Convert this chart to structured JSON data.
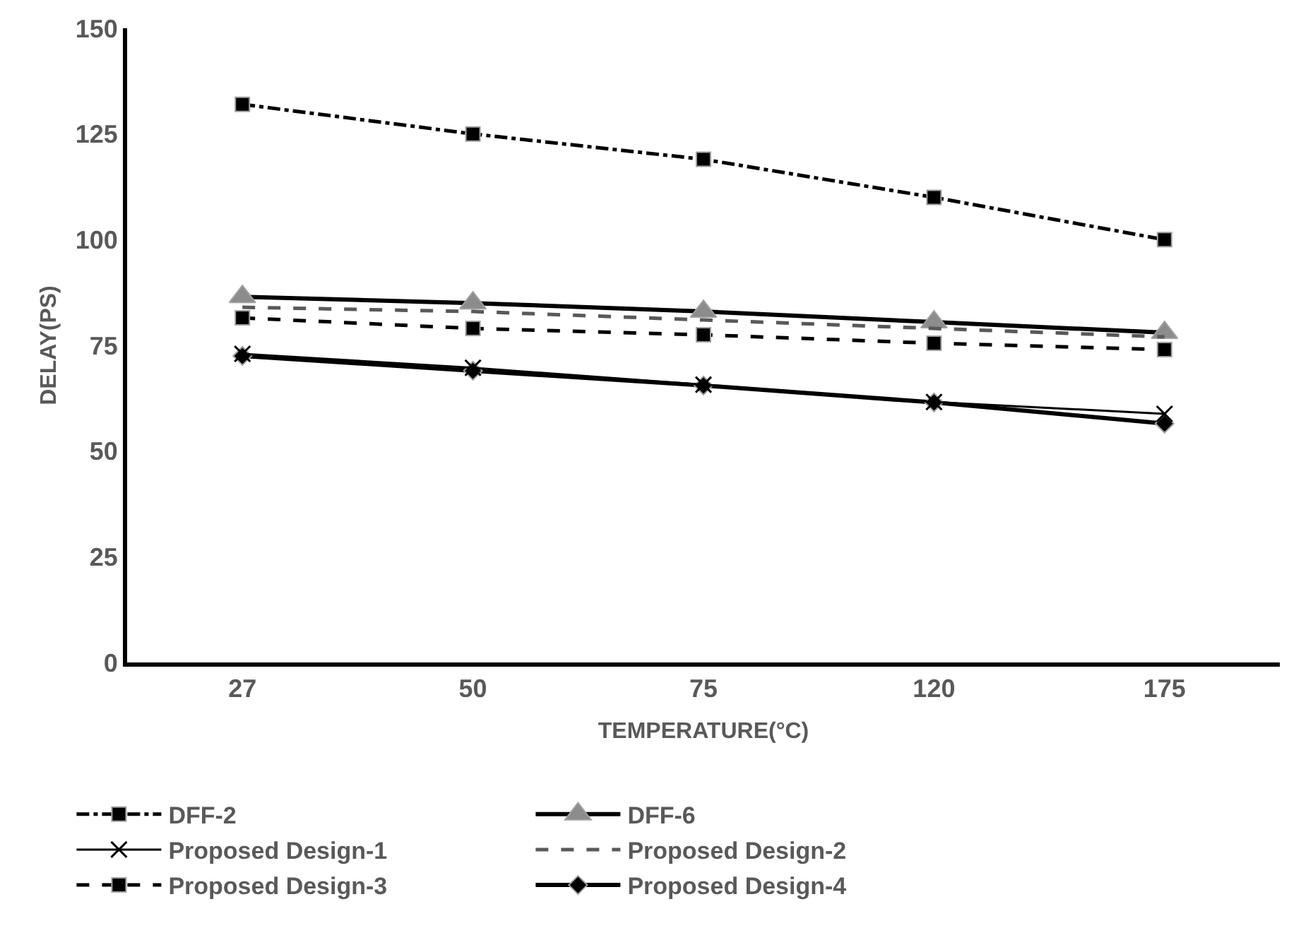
{
  "chart_data": {
    "type": "line",
    "xlabel": "TEMPERATURE(°C)",
    "ylabel": "DELAY(PS)",
    "categories": [
      "27",
      "50",
      "75",
      "120",
      "175"
    ],
    "ylim": [
      0,
      150
    ],
    "yticks": [
      0,
      25,
      50,
      75,
      100,
      125,
      150
    ],
    "grid": false,
    "legend": "bottom",
    "series": [
      {
        "name": "DFF-2",
        "color": "#000000",
        "marker": "square",
        "line_style": "dashdot",
        "values": [
          132,
          125,
          119,
          110,
          100
        ]
      },
      {
        "name": "DFF-6",
        "color": "#000000",
        "marker": "triangle",
        "line_style": "solid",
        "values": [
          86.5,
          85,
          83,
          80.5,
          78
        ]
      },
      {
        "name": "Proposed Design-1",
        "color": "#000000",
        "marker": "cross",
        "line_style": "solid",
        "values": [
          73,
          69.7,
          65.7,
          61.6,
          58.8
        ]
      },
      {
        "name": "Proposed Design-2",
        "color": "#595959",
        "marker": "none",
        "line_style": "dashed",
        "values": [
          84,
          83,
          81,
          79,
          77
        ]
      },
      {
        "name": "Proposed Design-3",
        "color": "#000000",
        "marker": "square",
        "line_style": "dashed",
        "values": [
          81.5,
          79,
          77.5,
          75.5,
          74
        ]
      },
      {
        "name": "Proposed Design-4",
        "color": "#000000",
        "marker": "diamond",
        "line_style": "solid",
        "values": [
          72.5,
          69,
          65.5,
          61.5,
          56.5
        ]
      }
    ]
  }
}
